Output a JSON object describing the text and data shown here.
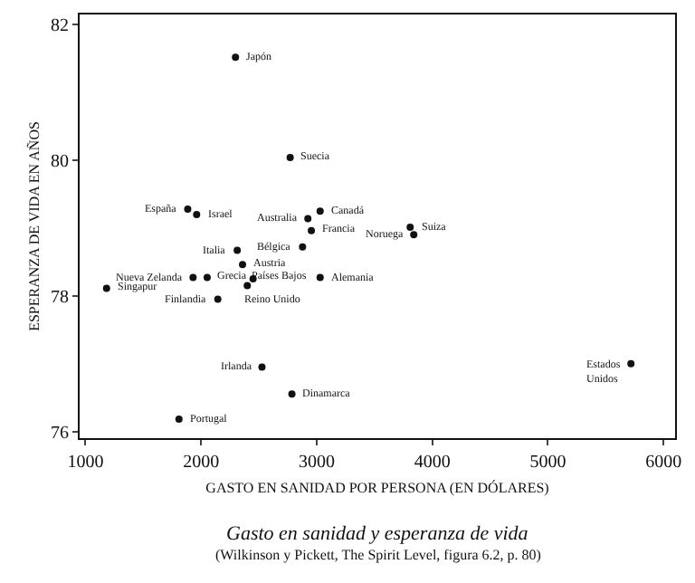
{
  "chart_data": {
    "type": "scatter",
    "title": "Gasto en sanidad y esperanza de vida",
    "xlabel": "GASTO EN SANIDAD POR PERSONA (EN DÓLARES)",
    "ylabel": "ESPERANZA DE VIDA EN AÑOS",
    "x": [
      2298,
      2771,
      1885,
      1962,
      2924,
      3030,
      2954,
      2878,
      2313,
      2359,
      1931,
      2053,
      2450,
      3030,
      2400,
      1183,
      2145,
      2527,
      2786,
      1809,
      3809,
      3840,
      5718
    ],
    "series": [
      {
        "color": "#111111",
        "values": [
          81.52,
          80.04,
          79.28,
          79.2,
          79.14,
          79.25,
          78.96,
          78.72,
          78.67,
          78.46,
          78.27,
          78.27,
          78.25,
          78.27,
          78.15,
          78.11,
          77.95,
          76.95,
          76.55,
          76.18,
          79.01,
          78.9,
          77.0
        ]
      }
    ],
    "marker": "circle",
    "xlim": [
      950,
      6100
    ],
    "ylim": [
      75.9,
      82.15
    ],
    "xticks": [
      1000,
      2000,
      3000,
      4000,
      5000,
      6000
    ],
    "yticks": [
      76,
      78,
      80,
      82
    ],
    "annotations": [
      {
        "text": "Japón",
        "x": 2298,
        "y": 81.52
      },
      {
        "text": "Suecia",
        "x": 2771,
        "y": 80.04
      },
      {
        "text": "España",
        "x": 1885,
        "y": 79.28
      },
      {
        "text": "Israel",
        "x": 1962,
        "y": 79.2
      },
      {
        "text": "Australia",
        "x": 2924,
        "y": 79.14
      },
      {
        "text": "Canadá",
        "x": 3030,
        "y": 79.25
      },
      {
        "text": "Francia",
        "x": 2954,
        "y": 78.96
      },
      {
        "text": "Bélgica",
        "x": 2878,
        "y": 78.72
      },
      {
        "text": "Italia",
        "x": 2313,
        "y": 78.67
      },
      {
        "text": "Austria",
        "x": 2359,
        "y": 78.46
      },
      {
        "text": "Nueva Zelanda",
        "x": 1931,
        "y": 78.27
      },
      {
        "text": "Grecia",
        "x": 2053,
        "y": 78.27
      },
      {
        "text": "Países Bajos",
        "x": 2450,
        "y": 78.25
      },
      {
        "text": "Alemania",
        "x": 3030,
        "y": 78.27
      },
      {
        "text": "Reino Unido",
        "x": 2400,
        "y": 78.15
      },
      {
        "text": "Singapur",
        "x": 1183,
        "y": 78.11
      },
      {
        "text": "Finlandia",
        "x": 2145,
        "y": 77.95
      },
      {
        "text": "Irlanda",
        "x": 2527,
        "y": 76.95
      },
      {
        "text": "Dinamarca",
        "x": 2786,
        "y": 76.55
      },
      {
        "text": "Portugal",
        "x": 1809,
        "y": 76.18
      },
      {
        "text": "Suiza",
        "x": 3809,
        "y": 79.01
      },
      {
        "text": "Noruega",
        "x": 3840,
        "y": 78.9
      },
      {
        "text": "Estados\nUnidos",
        "x": 5718,
        "y": 77.0
      },
      "(Wilkinson y Pickett, The Spirit Level, figura 6.2, p. 80)"
    ]
  }
}
